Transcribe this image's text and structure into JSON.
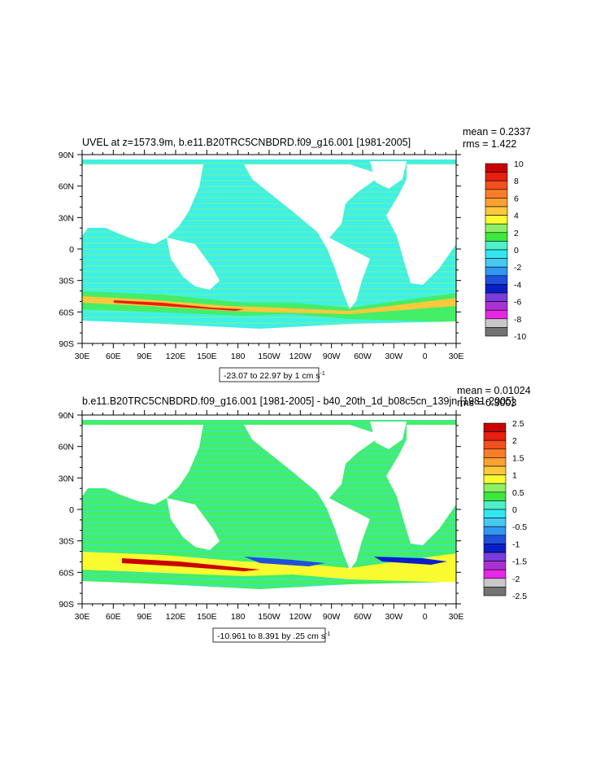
{
  "colors": {
    "ocean_base": "#3df0e8",
    "ocean_green": "#44ee66",
    "land": "#ffffff"
  },
  "chart_data": [
    {
      "type": "heatmap",
      "title": "UVEL at z=1573.9m, b.e11.B20TRC5CNBDRD.f09_g16.001 [1981-2005]",
      "stats": [
        "mean = 0.2337",
        "rms = 1.422"
      ],
      "x_ticks": [
        "30E",
        "60E",
        "90E",
        "120E",
        "150E",
        "180",
        "150W",
        "120W",
        "90W",
        "60W",
        "30W",
        "0",
        "30E"
      ],
      "y_ticks": [
        "90N",
        "60N",
        "30N",
        "0",
        "30S",
        "60S",
        "90S"
      ],
      "range_label": "-23.07 to 22.97 by 1 cm s",
      "range_unit_sup": "-1",
      "colorbar": {
        "labels": [
          "10",
          "8",
          "6",
          "4",
          "2",
          "0",
          "-2",
          "-4",
          "-6",
          "-8",
          "-10"
        ],
        "colors": [
          "#c80000",
          "#e81e10",
          "#f0501e",
          "#f87d28",
          "#fca032",
          "#fcc83c",
          "#fafa30",
          "#8cf064",
          "#3ce83c",
          "#50f0c8",
          "#32e6f0",
          "#46c8f0",
          "#3296f0",
          "#1e50dc",
          "#0a1ec8",
          "#7a3cdc",
          "#aa32d2",
          "#e628e6",
          "#c8c8c8",
          "#737373"
        ]
      }
    },
    {
      "type": "heatmap",
      "title": "b.e11.B20TRC5CNBDRD.f09_g16.001 [1981-2005] - b40_20th_1d_b08c5cn_139jn [1981-2005]",
      "stats": [
        "mean = 0.01024",
        "rms = 0.3003"
      ],
      "x_ticks": [
        "30E",
        "60E",
        "90E",
        "120E",
        "150E",
        "180",
        "150W",
        "120W",
        "90W",
        "60W",
        "30W",
        "0",
        "30E"
      ],
      "y_ticks": [
        "90N",
        "60N",
        "30N",
        "0",
        "30S",
        "60S",
        "90S"
      ],
      "range_label": "-10.961 to 8.391 by .25 cm s",
      "range_unit_sup": "-1",
      "colorbar": {
        "labels": [
          "2.5",
          "2",
          "1.5",
          "1",
          "0.5",
          "0",
          "-0.5",
          "-1",
          "-1.5",
          "-2",
          "-2.5"
        ],
        "colors": [
          "#c80000",
          "#e81e10",
          "#f0501e",
          "#f87d28",
          "#fca032",
          "#fcc83c",
          "#fafa30",
          "#8cf064",
          "#3ce83c",
          "#50f0c8",
          "#32e6f0",
          "#46c8f0",
          "#3296f0",
          "#1e50dc",
          "#0a1ec8",
          "#7a3cdc",
          "#aa32d2",
          "#e628e6",
          "#c8c8c8",
          "#737373"
        ]
      }
    }
  ]
}
